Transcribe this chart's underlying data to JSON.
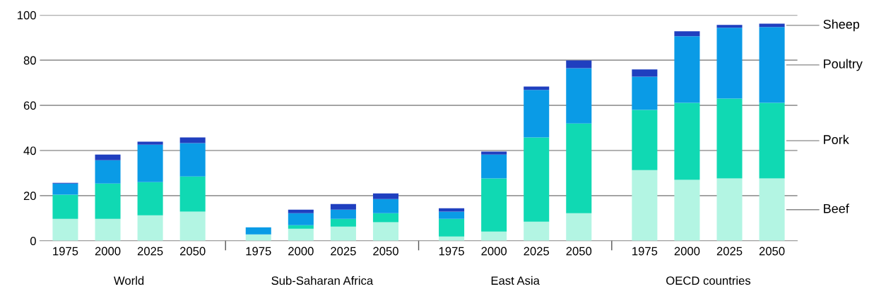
{
  "chart_data": {
    "type": "bar",
    "stacked": true,
    "categories": [
      "1975",
      "2000",
      "2025",
      "2050",
      "1975",
      "2000",
      "2025",
      "2050",
      "1975",
      "2000",
      "2025",
      "2050",
      "1975",
      "2000",
      "2025",
      "2050"
    ],
    "series": [
      {
        "name": "Beef",
        "color": "#b3f5e3",
        "values": [
          9.7,
          9.7,
          11.3,
          12.9,
          2.8,
          5.3,
          6.3,
          8.2,
          1.9,
          4.1,
          8.5,
          12.2,
          31.3,
          27,
          27.6,
          27.6
        ]
      },
      {
        "name": "Pork",
        "color": "#10d9b3",
        "values": [
          10.7,
          15.7,
          14.7,
          15.6,
          0,
          1.6,
          3.4,
          4,
          7.8,
          23.5,
          37.3,
          39.8,
          26.7,
          34.1,
          35.4,
          33.5
        ]
      },
      {
        "name": "Poultry",
        "color": "#0a9be6",
        "values": [
          5,
          10.3,
          16.6,
          14.8,
          3.2,
          5.3,
          4.1,
          6.3,
          3.2,
          10.6,
          21,
          24.5,
          14.7,
          29.5,
          31.4,
          33.6
        ]
      },
      {
        "name": "Sheep",
        "color": "#1f3fbf",
        "values": [
          0.3,
          2.5,
          1.3,
          2.5,
          0,
          1.6,
          2.5,
          2.5,
          1.5,
          1.3,
          1.5,
          3.4,
          3.2,
          2.2,
          1.2,
          1.5
        ]
      }
    ],
    "annotations": [
      "World",
      "Sub-Saharan Africa",
      "East Asia",
      "OECD countries"
    ],
    "ylim": [
      0,
      100
    ],
    "yticks": [
      0,
      20,
      40,
      60,
      80,
      100
    ],
    "grid": "y",
    "legend": "right"
  }
}
